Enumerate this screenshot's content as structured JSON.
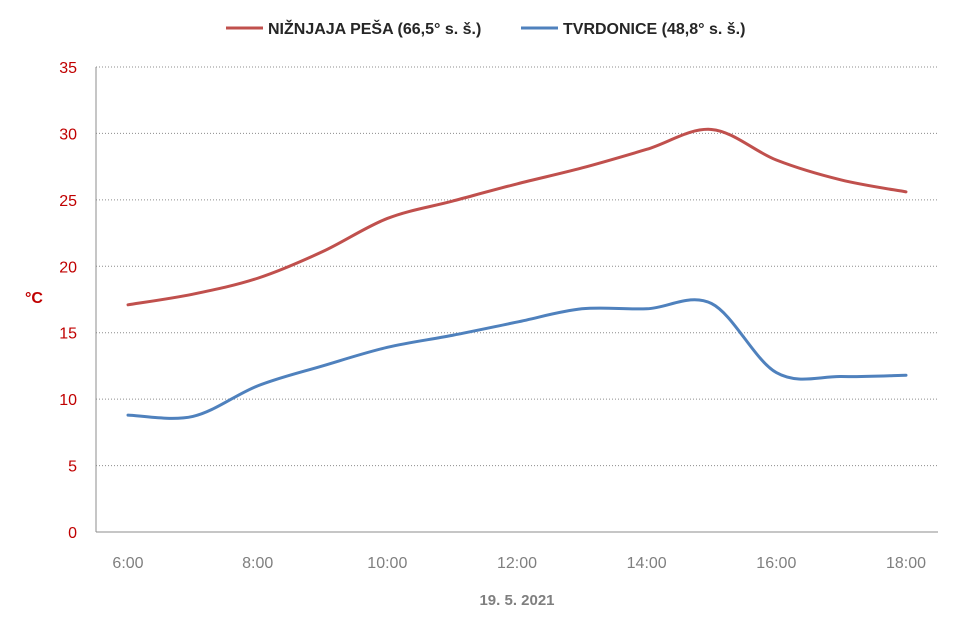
{
  "chart_data": {
    "type": "line",
    "title": "",
    "xlabel": "19. 5. 2021",
    "ylabel": "°C",
    "ylim": [
      0,
      35
    ],
    "yticks": [
      0,
      5,
      10,
      15,
      20,
      25,
      30,
      35
    ],
    "xlim": [
      "6:00",
      "18:00"
    ],
    "xticks": [
      "6:00",
      "8:00",
      "10:00",
      "12:00",
      "14:00",
      "16:00",
      "18:00"
    ],
    "grid": true,
    "legend_position": "top",
    "x": [
      "6:00",
      "7:00",
      "8:00",
      "9:00",
      "10:00",
      "11:00",
      "12:00",
      "13:00",
      "14:00",
      "15:00",
      "16:00",
      "17:00",
      "18:00"
    ],
    "series": [
      {
        "name": "NIŽNJAJA PEŠA (66,5° s. š.)",
        "color": "#c0504d",
        "values": [
          17.1,
          17.9,
          19.1,
          21.1,
          23.6,
          24.9,
          26.2,
          27.4,
          28.8,
          30.3,
          28.0,
          26.5,
          25.6
        ]
      },
      {
        "name": "TVRDONICE (48,8° s. š.)",
        "color": "#4f81bd",
        "values": [
          8.8,
          8.7,
          11.0,
          12.5,
          13.9,
          14.8,
          15.8,
          16.8,
          16.8,
          17.2,
          12.0,
          11.7,
          11.8
        ]
      }
    ]
  }
}
